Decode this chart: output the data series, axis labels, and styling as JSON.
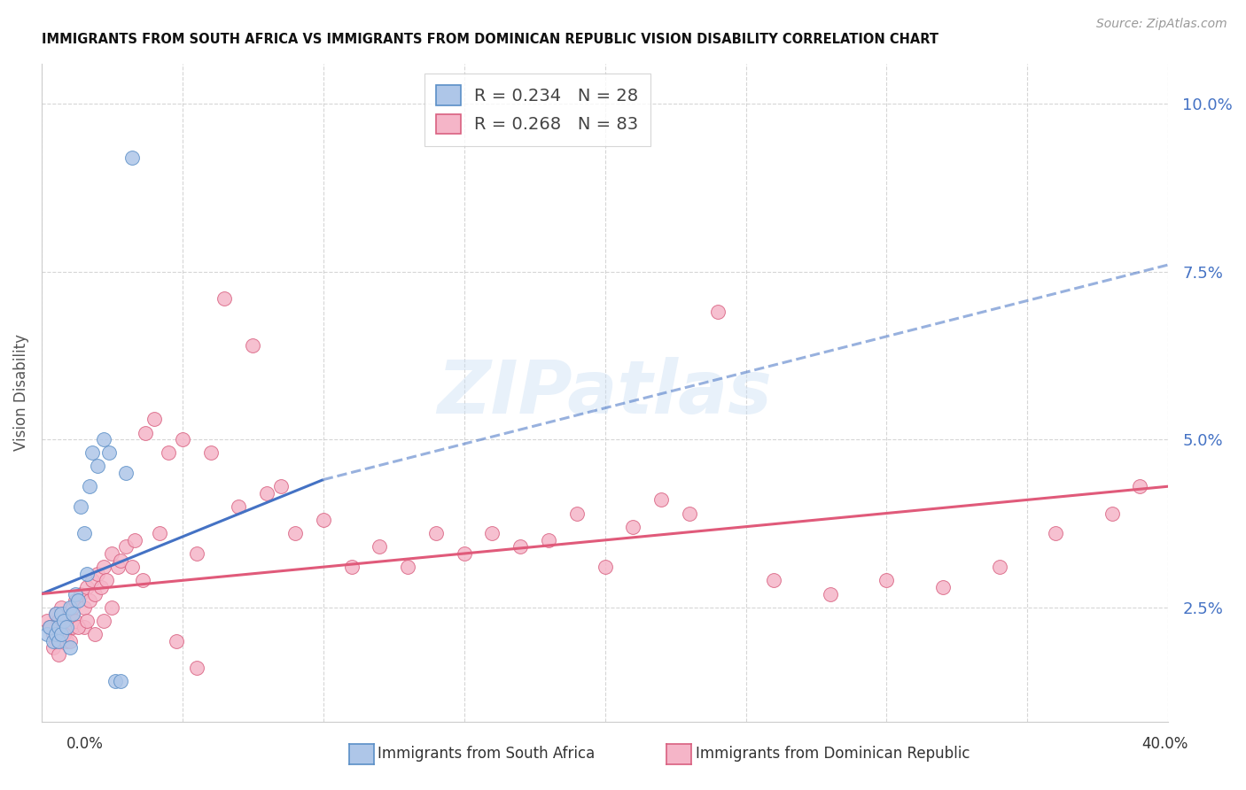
{
  "title": "IMMIGRANTS FROM SOUTH AFRICA VS IMMIGRANTS FROM DOMINICAN REPUBLIC VISION DISABILITY CORRELATION CHART",
  "source": "Source: ZipAtlas.com",
  "ylabel": "Vision Disability",
  "ytick_labels": [
    "2.5%",
    "5.0%",
    "7.5%",
    "10.0%"
  ],
  "ytick_vals": [
    0.025,
    0.05,
    0.075,
    0.1
  ],
  "xlim": [
    0.0,
    0.4
  ],
  "ylim": [
    0.008,
    0.106
  ],
  "legend_r1": "0.234",
  "legend_n1": "28",
  "legend_r2": "0.268",
  "legend_n2": "83",
  "color_sa_fill": "#aec6e8",
  "color_sa_edge": "#5b8fc7",
  "color_dr_fill": "#f5b5c8",
  "color_dr_edge": "#d96080",
  "color_sa_line": "#4472c4",
  "color_dr_line": "#e05a7a",
  "color_tick_right": "#4472c4",
  "watermark": "ZIPatlas",
  "sa_x": [
    0.002,
    0.003,
    0.004,
    0.005,
    0.005,
    0.006,
    0.006,
    0.007,
    0.007,
    0.008,
    0.009,
    0.01,
    0.01,
    0.011,
    0.012,
    0.013,
    0.014,
    0.015,
    0.016,
    0.017,
    0.018,
    0.02,
    0.022,
    0.024,
    0.026,
    0.028,
    0.03,
    0.032
  ],
  "sa_y": [
    0.021,
    0.022,
    0.02,
    0.021,
    0.024,
    0.022,
    0.02,
    0.024,
    0.021,
    0.023,
    0.022,
    0.019,
    0.025,
    0.024,
    0.027,
    0.026,
    0.04,
    0.036,
    0.03,
    0.043,
    0.048,
    0.046,
    0.05,
    0.048,
    0.014,
    0.014,
    0.045,
    0.092
  ],
  "dr_x": [
    0.002,
    0.003,
    0.004,
    0.005,
    0.005,
    0.006,
    0.007,
    0.007,
    0.008,
    0.008,
    0.009,
    0.009,
    0.01,
    0.01,
    0.011,
    0.011,
    0.012,
    0.012,
    0.013,
    0.014,
    0.015,
    0.015,
    0.016,
    0.017,
    0.018,
    0.019,
    0.02,
    0.021,
    0.022,
    0.023,
    0.025,
    0.027,
    0.03,
    0.033,
    0.037,
    0.04,
    0.045,
    0.05,
    0.055,
    0.06,
    0.07,
    0.08,
    0.09,
    0.1,
    0.11,
    0.12,
    0.13,
    0.14,
    0.15,
    0.16,
    0.17,
    0.18,
    0.19,
    0.2,
    0.21,
    0.22,
    0.23,
    0.24,
    0.26,
    0.28,
    0.3,
    0.32,
    0.34,
    0.36,
    0.38,
    0.004,
    0.006,
    0.008,
    0.01,
    0.013,
    0.016,
    0.019,
    0.022,
    0.025,
    0.028,
    0.032,
    0.036,
    0.042,
    0.048,
    0.055,
    0.065,
    0.075,
    0.085,
    0.39
  ],
  "dr_y": [
    0.023,
    0.022,
    0.021,
    0.024,
    0.02,
    0.023,
    0.025,
    0.022,
    0.024,
    0.021,
    0.023,
    0.02,
    0.024,
    0.022,
    0.025,
    0.022,
    0.026,
    0.023,
    0.026,
    0.027,
    0.025,
    0.022,
    0.028,
    0.026,
    0.029,
    0.027,
    0.03,
    0.028,
    0.031,
    0.029,
    0.033,
    0.031,
    0.034,
    0.035,
    0.051,
    0.053,
    0.048,
    0.05,
    0.033,
    0.048,
    0.04,
    0.042,
    0.036,
    0.038,
    0.031,
    0.034,
    0.031,
    0.036,
    0.033,
    0.036,
    0.034,
    0.035,
    0.039,
    0.031,
    0.037,
    0.041,
    0.039,
    0.069,
    0.029,
    0.027,
    0.029,
    0.028,
    0.031,
    0.036,
    0.039,
    0.019,
    0.018,
    0.021,
    0.02,
    0.022,
    0.023,
    0.021,
    0.023,
    0.025,
    0.032,
    0.031,
    0.029,
    0.036,
    0.02,
    0.016,
    0.071,
    0.064,
    0.043,
    0.043
  ],
  "sa_line_x_solid_start": 0.0,
  "sa_line_x_solid_end": 0.1,
  "sa_line_x_dash_end": 0.4,
  "sa_line_y_at_0": 0.027,
  "sa_line_y_at_010": 0.044,
  "sa_line_y_at_040": 0.076,
  "dr_line_y_at_0": 0.027,
  "dr_line_y_at_040": 0.043
}
